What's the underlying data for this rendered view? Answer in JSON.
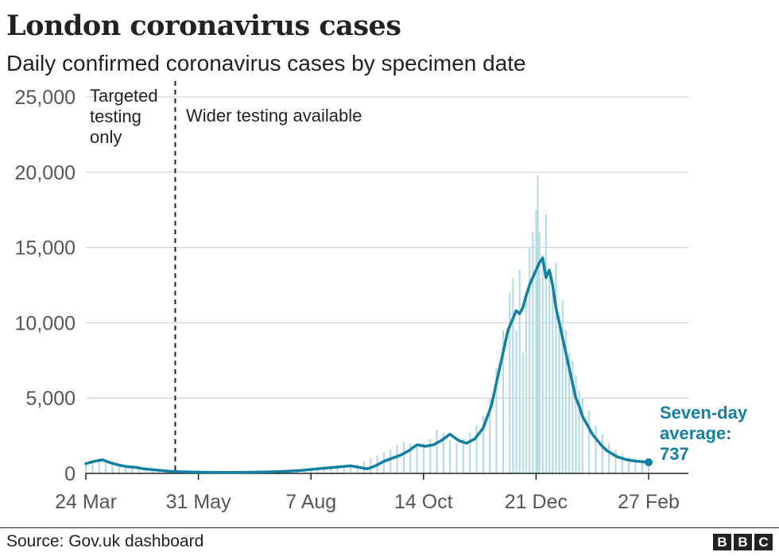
{
  "title": "London coronavirus cases",
  "subtitle": "Daily confirmed coronavirus cases by specimen date",
  "source": "Source: Gov.uk dashboard",
  "logo": [
    "B",
    "B",
    "C"
  ],
  "colors": {
    "line": "#1380a1",
    "bars": "#b6dbe5",
    "grid": "#cccccc",
    "axis": "#222222",
    "tick_text": "#555555"
  },
  "chart_data": {
    "type": "line",
    "ylim": [
      0,
      25000
    ],
    "y_ticks": [
      0,
      5000,
      10000,
      15000,
      20000,
      25000
    ],
    "y_tick_labels": [
      "0",
      "5,000",
      "10,000",
      "15,000",
      "20,000",
      "25,000"
    ],
    "x_range_days": [
      0,
      340
    ],
    "x_ticks": [
      {
        "day": 0,
        "label": "24 Mar"
      },
      {
        "day": 68,
        "label": "31 May"
      },
      {
        "day": 136,
        "label": "7 Aug"
      },
      {
        "day": 204,
        "label": "14 Oct"
      },
      {
        "day": 272,
        "label": "21 Dec"
      },
      {
        "day": 340,
        "label": "27 Feb"
      }
    ],
    "annotations": {
      "divider_day": 54,
      "left_label": [
        "Targeted",
        "testing",
        "only"
      ],
      "right_label": "Wider testing available",
      "end_label": [
        "Seven-day",
        "average:",
        "737"
      ]
    },
    "series": [
      {
        "type": "line",
        "x_days": [
          0,
          5,
          10,
          15,
          20,
          25,
          30,
          35,
          40,
          45,
          50,
          55,
          60,
          70,
          80,
          90,
          100,
          110,
          120,
          130,
          140,
          150,
          160,
          170,
          175,
          180,
          190,
          195,
          200,
          205,
          210,
          215,
          220,
          225,
          230,
          235,
          240,
          245,
          250,
          255,
          260,
          262,
          264,
          266,
          268,
          270,
          272,
          274,
          276,
          278,
          280,
          282,
          284,
          286,
          288,
          290,
          292,
          294,
          296,
          298,
          300,
          303,
          306,
          309,
          312,
          315,
          318,
          321,
          324,
          327,
          330,
          333,
          336,
          340
        ],
        "values": [
          650,
          800,
          900,
          700,
          550,
          450,
          400,
          300,
          250,
          200,
          150,
          120,
          100,
          80,
          70,
          70,
          80,
          100,
          130,
          200,
          300,
          400,
          500,
          300,
          500,
          800,
          1200,
          1500,
          1900,
          1800,
          1900,
          2200,
          2600,
          2200,
          2000,
          2300,
          3000,
          4500,
          7000,
          9500,
          10800,
          10600,
          11000,
          11800,
          12500,
          13000,
          13500,
          14000,
          14300,
          13000,
          13500,
          12500,
          11000,
          10000,
          9000,
          8000,
          7000,
          6000,
          5000,
          4500,
          3800,
          3200,
          2600,
          2200,
          1800,
          1500,
          1300,
          1100,
          1000,
          900,
          850,
          800,
          780,
          737
        ]
      }
    ],
    "daily_bars": {
      "x_days": [
        0,
        4,
        8,
        12,
        16,
        20,
        24,
        28,
        32,
        36,
        40,
        44,
        48,
        52,
        56,
        60,
        64,
        68,
        72,
        76,
        80,
        84,
        88,
        92,
        96,
        100,
        104,
        108,
        112,
        116,
        120,
        124,
        128,
        132,
        136,
        140,
        144,
        148,
        152,
        156,
        160,
        164,
        168,
        172,
        176,
        180,
        184,
        188,
        192,
        196,
        200,
        204,
        208,
        212,
        216,
        220,
        224,
        228,
        232,
        236,
        240,
        244,
        248,
        252,
        256,
        258,
        260,
        262,
        264,
        266,
        268,
        270,
        272,
        273,
        274,
        276,
        278,
        280,
        282,
        284,
        286,
        288,
        290,
        292,
        294,
        296,
        298,
        300,
        304,
        308,
        312,
        316,
        320,
        324,
        328,
        332,
        336,
        340
      ],
      "values": [
        600,
        700,
        900,
        850,
        700,
        500,
        450,
        400,
        350,
        300,
        250,
        200,
        150,
        130,
        110,
        100,
        90,
        80,
        75,
        70,
        70,
        70,
        70,
        75,
        75,
        80,
        90,
        100,
        110,
        130,
        160,
        200,
        260,
        320,
        380,
        420,
        480,
        520,
        400,
        350,
        450,
        600,
        800,
        1000,
        1200,
        1400,
        1600,
        1900,
        2100,
        2000,
        1900,
        2000,
        2300,
        2900,
        2700,
        2200,
        2000,
        2300,
        2700,
        3200,
        3800,
        5000,
        7000,
        9500,
        12000,
        13000,
        9500,
        13500,
        8000,
        12000,
        15000,
        16000,
        17500,
        19800,
        16000,
        14500,
        17200,
        13500,
        12000,
        14000,
        10500,
        11500,
        9500,
        8000,
        7500,
        6500,
        5500,
        5000,
        4200,
        3200,
        2600,
        2000,
        1600,
        1300,
        1100,
        1000,
        900,
        800
      ]
    }
  }
}
